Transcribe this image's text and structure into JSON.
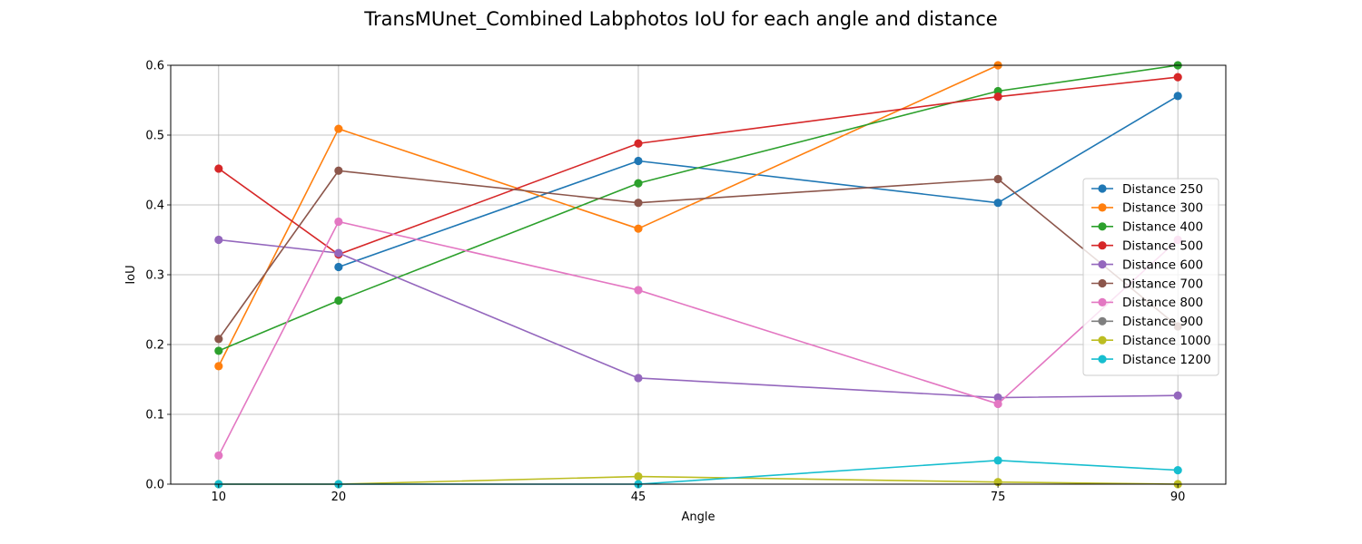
{
  "chart_data": {
    "type": "line",
    "title": "TransMUnet_Combined Labphotos IoU for each angle and distance",
    "xlabel": "Angle",
    "ylabel": "IoU",
    "x": [
      10,
      20,
      45,
      75,
      90
    ],
    "x_tick_labels": [
      "10",
      "20",
      "45",
      "75",
      "90"
    ],
    "xlim": [
      6,
      94
    ],
    "ylim": [
      0,
      0.6
    ],
    "y_ticks": [
      0.0,
      0.1,
      0.2,
      0.3,
      0.4,
      0.5,
      0.6
    ],
    "y_tick_labels": [
      "0.0",
      "0.1",
      "0.2",
      "0.3",
      "0.4",
      "0.5",
      "0.6"
    ],
    "grid": true,
    "legend_position": "center-right",
    "series": [
      {
        "name": "Distance 250",
        "color": "#1f77b4",
        "values": [
          null,
          0.311,
          0.463,
          0.403,
          0.556
        ]
      },
      {
        "name": "Distance 300",
        "color": "#ff7f0e",
        "values": [
          0.169,
          0.509,
          0.366,
          0.6,
          null
        ]
      },
      {
        "name": "Distance 400",
        "color": "#2ca02c",
        "values": [
          0.191,
          0.263,
          0.431,
          0.563,
          0.6
        ]
      },
      {
        "name": "Distance 500",
        "color": "#d62728",
        "values": [
          0.452,
          0.329,
          0.488,
          0.555,
          0.583
        ]
      },
      {
        "name": "Distance 600",
        "color": "#9467bd",
        "values": [
          0.35,
          0.331,
          0.152,
          0.124,
          0.127
        ]
      },
      {
        "name": "Distance 700",
        "color": "#8c564b",
        "values": [
          0.208,
          0.449,
          0.403,
          0.437,
          0.226
        ]
      },
      {
        "name": "Distance 800",
        "color": "#e377c2",
        "values": [
          0.041,
          0.376,
          0.278,
          0.115,
          0.35
        ]
      },
      {
        "name": "Distance 900",
        "color": "#7f7f7f",
        "values": [
          null,
          null,
          null,
          null,
          null
        ]
      },
      {
        "name": "Distance 1000",
        "color": "#bcbd22",
        "values": [
          0.0,
          0.0,
          0.011,
          0.003,
          0.0
        ]
      },
      {
        "name": "Distance 1200",
        "color": "#17becf",
        "values": [
          0.0,
          0.0,
          0.0,
          0.034,
          0.02
        ]
      }
    ]
  }
}
